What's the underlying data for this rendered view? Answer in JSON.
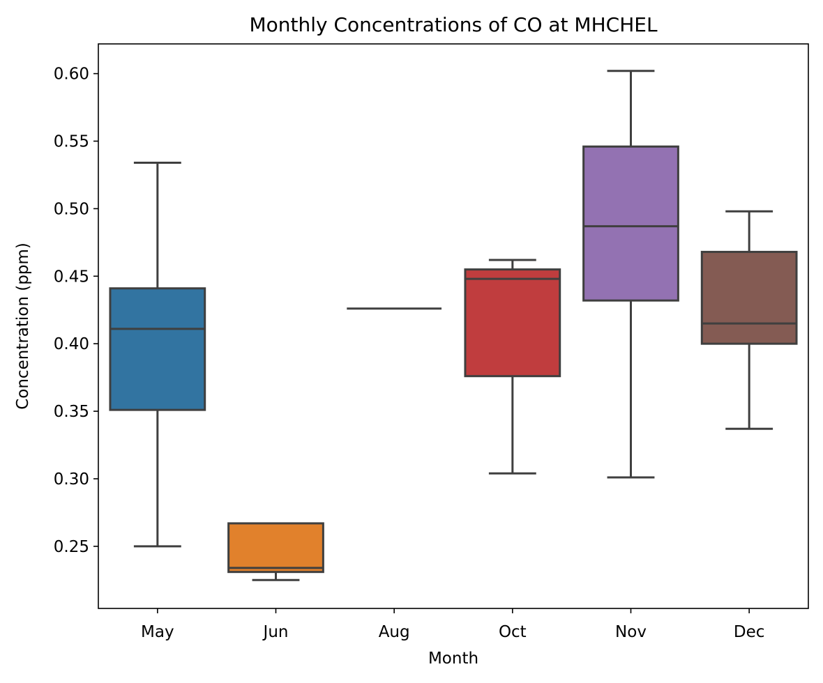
{
  "chart_data": {
    "type": "box",
    "title": "Monthly Concentrations of CO at MHCHEL",
    "xlabel": "Month",
    "ylabel": "Concentration (ppm)",
    "ylim": [
      0.204,
      0.622
    ],
    "yticks": [
      0.25,
      0.3,
      0.35,
      0.4,
      0.45,
      0.5,
      0.55,
      0.6
    ],
    "ytick_labels": [
      "0.25",
      "0.30",
      "0.35",
      "0.40",
      "0.45",
      "0.50",
      "0.55",
      "0.60"
    ],
    "categories": [
      "May",
      "Jun",
      "Aug",
      "Oct",
      "Nov",
      "Dec"
    ],
    "grid": false,
    "legend": "none",
    "boxes": [
      {
        "category": "May",
        "whisker_low": 0.25,
        "q1": 0.351,
        "median": 0.411,
        "q3": 0.441,
        "whisker_high": 0.534,
        "color": "#3274a1"
      },
      {
        "category": "Jun",
        "whisker_low": 0.225,
        "q1": 0.231,
        "median": 0.234,
        "q3": 0.267,
        "whisker_high": 0.267,
        "color": "#e1812c"
      },
      {
        "category": "Aug",
        "whisker_low": 0.426,
        "q1": 0.426,
        "median": 0.426,
        "q3": 0.426,
        "whisker_high": 0.426,
        "color": "#3a923a"
      },
      {
        "category": "Oct",
        "whisker_low": 0.304,
        "q1": 0.376,
        "median": 0.448,
        "q3": 0.455,
        "whisker_high": 0.462,
        "color": "#c03d3e"
      },
      {
        "category": "Nov",
        "whisker_low": 0.301,
        "q1": 0.432,
        "median": 0.487,
        "q3": 0.546,
        "whisker_high": 0.602,
        "color": "#9372b2"
      },
      {
        "category": "Dec",
        "whisker_low": 0.337,
        "q1": 0.4,
        "median": 0.415,
        "q3": 0.468,
        "whisker_high": 0.498,
        "color": "#845b53"
      }
    ]
  }
}
